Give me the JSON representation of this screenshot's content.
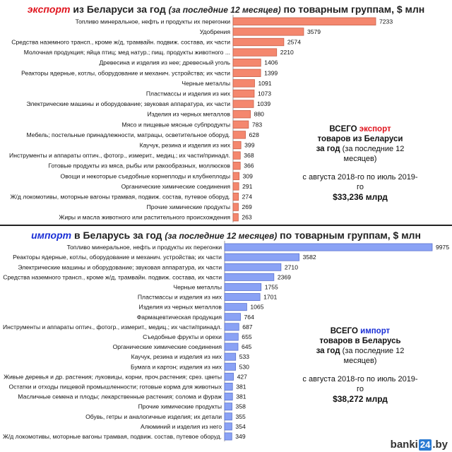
{
  "export_panel": {
    "title_keyword": "экспорт",
    "title_rest": " из Беларуси за год ",
    "title_paren": "(за последние 12 месяцев)",
    "title_tail": " по товарным группам, $ млн",
    "summary": {
      "line1_prefix": "ВСЕГО ",
      "line1_keyword": "экспорт",
      "line2": "товаров из Беларуси",
      "line3_main": "за год",
      "line3_paren": "(за последние 12 месяцев)",
      "period": "с августа 2018-го по июль 2019-го",
      "total": "$33,236 млрд"
    },
    "bar_color": "#f4876e",
    "bar_edge": "#c9604a"
  },
  "import_panel": {
    "title_keyword": "импорт",
    "title_rest": " в Беларусь за год ",
    "title_paren": "(за последние 12 месяцев)",
    "title_tail": " по товарным группам, $ млн",
    "summary": {
      "line1_prefix": "ВСЕГО ",
      "line1_keyword": "импорт",
      "line2": "товаров в Беларусь",
      "line3_main": "за год",
      "line3_paren": "(за последние 12 месяцев)",
      "period": "с августа 2018-го по июль 2019-го",
      "total": "$38,272 млрд"
    },
    "bar_color": "#8aa2f5",
    "bar_edge": "#5d74cf"
  },
  "logo": {
    "prefix": "banki",
    "num": "24",
    "suffix": ".by"
  },
  "chart_data": [
    {
      "type": "bar",
      "orientation": "horizontal",
      "title": "экспорт из Беларуси за год (за последние 12 месяцев) по товарным группам, $ млн",
      "categories": [
        "Топливо минеральное, нефть и продукты их перегонки",
        "Удобрения",
        "Средства наземного трансп., кроме ж/д, трамвайн. подвиж. состава, их части",
        "Молочная продукция; яйца птиц; мед натур.; пищ. продукты животного ...",
        "Древесина и изделия из нее; древесный уголь",
        "Реакторы ядерные, котлы, оборудование и механич. устройства; их части",
        "Черные металлы",
        "Пластмассы и изделия из них",
        "Электрические машины и оборудование; звуковая аппаратура, их части",
        "Изделия из черных металлов",
        "Мясо и пищевые мясные субпродукты",
        "Мебель; постельные принадлежности, матрацы, осветительное оборуд.",
        "Каучук, резина и изделия из них",
        "Инструменты и аппараты оптич., фотогр., измерит., медиц.; их части/принадл.",
        "Готовые продукты из мяса, рыбы или ракообразных, моллюсков",
        "Овощи и некоторые съедобные корнеплоды и клубнеплоды",
        "Органические химические соединения",
        "Ж/д локомотивы, моторные вагоны трамвая, подвиж. состав, путевое оборуд.",
        "Прочие химические продукты",
        "Жиры и масла животного или растительного происхождения"
      ],
      "values": [
        7233,
        3579,
        2574,
        2210,
        1406,
        1399,
        1091,
        1073,
        1039,
        880,
        783,
        628,
        399,
        368,
        366,
        309,
        291,
        274,
        269,
        263
      ]
    },
    {
      "type": "bar",
      "orientation": "horizontal",
      "title": "импорт в Беларусь за год (за последние 12 месяцев) по товарным группам, $ млн",
      "categories": [
        "Топливо минеральное, нефть и продукты их перегонки",
        "Реакторы ядерные, котлы, оборудование и механич. устройства; их части",
        "Электрические машины и оборудование; звуковая аппаратура, их части",
        "Средства наземного трансп., кроме ж/д, трамвайн. подвиж. состава, их части",
        "Черные металлы",
        "Пластмассы и изделия из них",
        "Изделия из черных металлов",
        "Фармацевтическая продукция",
        "Инструменты и аппараты оптич., фотогр., измерит., медиц.; их части/принадл.",
        "Съедобные фрукты и орехи",
        "Органические химические соединения",
        "Каучук, резина и изделия из них",
        "Бумага и картон; изделия из них",
        "Живые деревья и др. растения; луковицы, корни, проч.растения; срез. цветы",
        "Остатки и отходы пищевой промышленности; готовые корма для животных",
        "Масличные семена и плоды; лекарственные растения; солома и фураж",
        "Прочие химические продукты",
        "Обувь, гетры и аналогичные изделия; их детали",
        "Алюминий и изделия из него",
        "Ж/д локомотивы, моторные вагоны трамвая, подвиж. состав, путевое оборуд."
      ],
      "values": [
        9975,
        3582,
        2710,
        2369,
        1755,
        1701,
        1065,
        764,
        687,
        655,
        645,
        533,
        530,
        427,
        381,
        381,
        358,
        355,
        354,
        349
      ]
    }
  ]
}
